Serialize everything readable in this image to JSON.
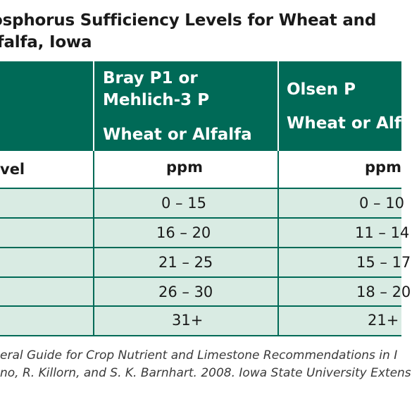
{
  "title": {
    "line1": "osphorus Sufficiency Levels for Wheat and",
    "line2": "lfalfa, Iowa"
  },
  "columns": {
    "col2_line1": "Bray P1 or",
    "col2_line2": "Mehlich-3 P",
    "col2_crop": "Wheat or Alfalfa",
    "col3_line1": "Olsen P",
    "col3_crop": "Wheat or Alfa"
  },
  "unit_row": {
    "level_label": "vel",
    "col2_unit": "ppm",
    "col3_unit": "ppm"
  },
  "rows": [
    {
      "bray": "0 – 15",
      "olsen": "0 – 10"
    },
    {
      "bray": "16 – 20",
      "olsen": "11 – 14"
    },
    {
      "bray": "21 – 25",
      "olsen": "15 – 17"
    },
    {
      "bray": "26 – 30",
      "olsen": "18 – 20"
    },
    {
      "bray": "31+",
      "olsen": "21+"
    }
  ],
  "footnote": {
    "line1": "eral Guide for Crop Nutrient and Limestone Recommendations in I",
    "line2": "no, R. Killorn, and S. K. Barnhart. 2008. Iowa State University Extens"
  },
  "colors": {
    "header": "#006a57",
    "row_fill": "#d9ebe3"
  }
}
